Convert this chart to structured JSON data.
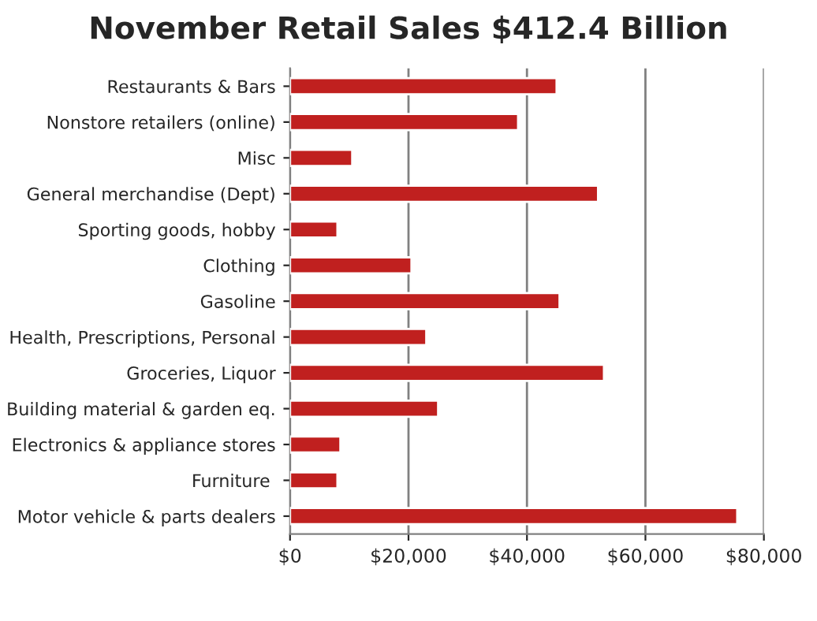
{
  "chart_data": {
    "type": "bar",
    "orientation": "horizontal",
    "title": "November Retail Sales $412.4 Billion",
    "categories": [
      "Restaurants & Bars",
      "Nonstore retailers (online)",
      "Misc",
      "General merchandise (Dept)",
      "Sporting goods, hobby",
      "Clothing",
      "Gasoline",
      "Health, Prescriptions, Personal",
      "Groceries, Liquor",
      "Building material & garden eq.",
      "Electronics & appliance stores",
      "Furniture ",
      "Motor vehicle & parts dealers"
    ],
    "values": [
      45000,
      38500,
      10500,
      52000,
      8000,
      20500,
      45500,
      23000,
      53000,
      25000,
      8500,
      8000,
      75500
    ],
    "color": "#c0201f",
    "xlim": [
      0,
      80000
    ],
    "xticks": [
      {
        "value": 0,
        "label": "$0"
      },
      {
        "value": 20000,
        "label": "$20,000"
      },
      {
        "value": 40000,
        "label": "$40,000"
      },
      {
        "value": 60000,
        "label": "$60,000"
      },
      {
        "value": 80000,
        "label": "$80,000"
      }
    ],
    "grid": "x",
    "legend": false
  }
}
